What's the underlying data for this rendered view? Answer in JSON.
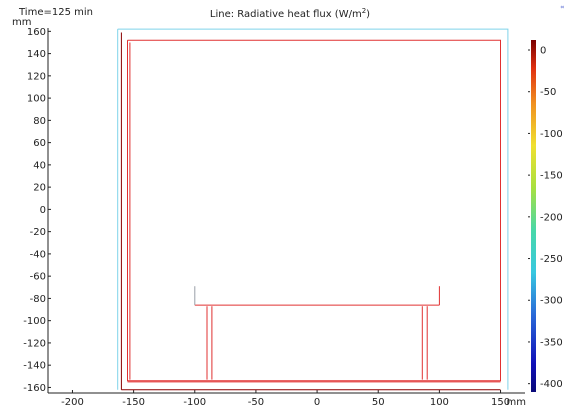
{
  "chart_data": {
    "type": "line",
    "title_prefix": "Line: Radiative heat flux (W/m",
    "title_sup": "2",
    "title_suffix": ")",
    "time_label": "Time=125 min",
    "x_unit": "mm",
    "y_unit": "mm",
    "xlim": [
      -220,
      170
    ],
    "ylim": [
      -165,
      163
    ],
    "x_ticks": [
      -200,
      -150,
      -100,
      -50,
      0,
      50,
      100,
      150
    ],
    "y_ticks": [
      160,
      140,
      120,
      100,
      80,
      60,
      40,
      20,
      0,
      -20,
      -40,
      -60,
      -80,
      -100,
      -120,
      -140,
      -160
    ],
    "colorbar": {
      "range": [
        -410,
        12
      ],
      "ticks": [
        0,
        -50,
        -100,
        -150,
        -200,
        -250,
        -300,
        -350,
        -400
      ]
    },
    "series": [
      {
        "value": 12,
        "color": "#8a0000",
        "points": [
          [
            -160,
            159
          ],
          [
            -160,
            -162
          ]
        ]
      },
      {
        "value": 12,
        "color": "#8a0000",
        "points": [
          [
            -160,
            -162
          ],
          [
            150,
            -162
          ]
        ]
      },
      {
        "value": -285,
        "color": "#7fd3ea",
        "points": [
          [
            -163,
            162
          ],
          [
            156,
            162
          ],
          [
            156,
            -162
          ]
        ]
      },
      {
        "value": -285,
        "color": "#7fd3ea",
        "points": [
          [
            -163,
            162
          ],
          [
            -163,
            -162
          ]
        ]
      },
      {
        "value": -5,
        "color": "#e03030",
        "points": [
          [
            -155,
            152
          ],
          [
            150,
            152
          ],
          [
            150,
            -154
          ],
          [
            -155,
            -154
          ],
          [
            -155,
            152
          ]
        ]
      },
      {
        "value": -5,
        "color": "#e03030",
        "points": [
          [
            -153,
            150
          ],
          [
            -153,
            -153
          ]
        ]
      },
      {
        "value": -5,
        "color": "#e03030",
        "points": [
          [
            -155,
            -155
          ],
          [
            150,
            -155
          ]
        ]
      },
      {
        "value": -5,
        "color": "#e03030",
        "points": [
          [
            -100,
            -86
          ],
          [
            100,
            -86
          ]
        ]
      },
      {
        "value": -5,
        "color": "#e03030",
        "points": [
          [
            100,
            -86
          ],
          [
            100,
            -69
          ]
        ]
      },
      {
        "value": -40,
        "color": "#9aa0a8",
        "points": [
          [
            -100,
            -86
          ],
          [
            -100,
            -69
          ]
        ]
      },
      {
        "value": -5,
        "color": "#e03030",
        "points": [
          [
            -90,
            -87
          ],
          [
            -90,
            -153
          ]
        ]
      },
      {
        "value": -5,
        "color": "#e03030",
        "points": [
          [
            -86,
            -87
          ],
          [
            -86,
            -153
          ]
        ]
      },
      {
        "value": -5,
        "color": "#e03030",
        "points": [
          [
            86,
            -87
          ],
          [
            86,
            -153
          ]
        ]
      },
      {
        "value": -5,
        "color": "#e03030",
        "points": [
          [
            90,
            -87
          ],
          [
            90,
            -153
          ]
        ]
      }
    ]
  }
}
